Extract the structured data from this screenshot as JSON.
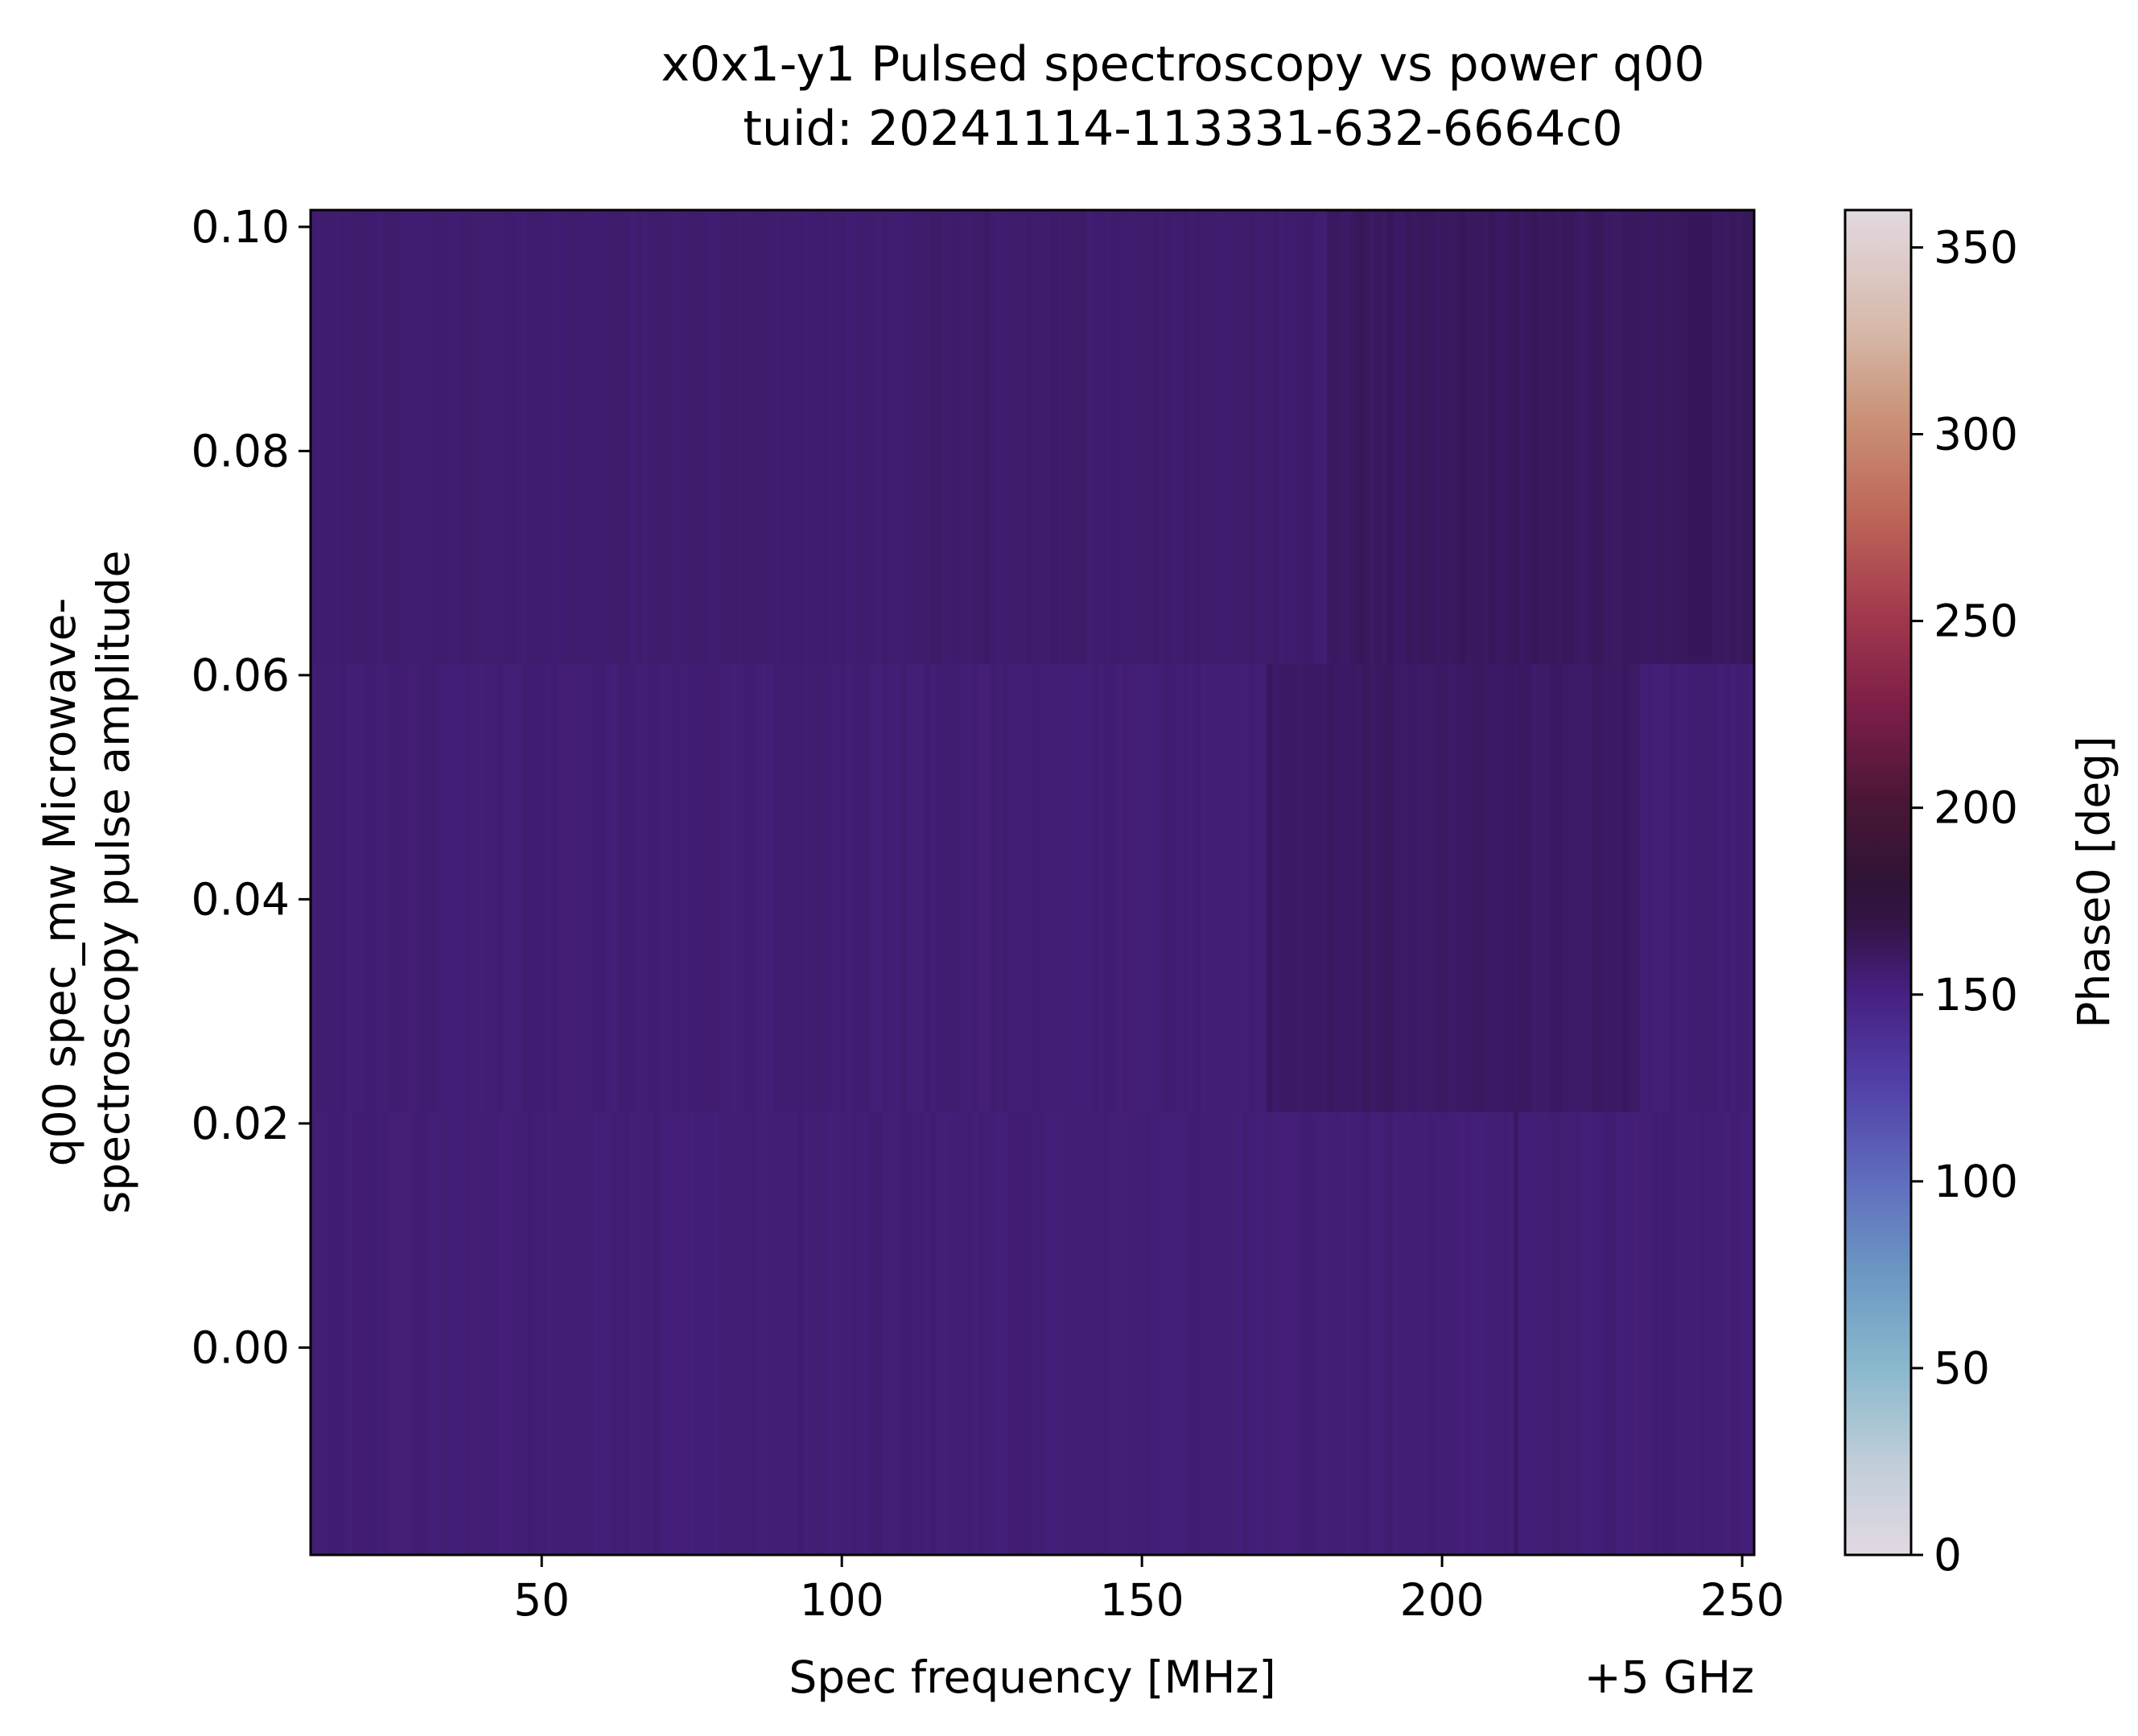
{
  "chart_data": {
    "type": "heatmap",
    "title_line1": "x0x1-y1 Pulsed spectroscopy vs power q00",
    "title_line2": "tuid: 20241114-113331-632-6664c0",
    "xlabel": "Spec frequency [MHz]",
    "x_offset_label": "+5 GHz",
    "ylabel_line1": "q00 spec_mw Microwave-",
    "ylabel_line2": "spectroscopy pulse amplitude",
    "xlim": [
      11.5,
      252
    ],
    "ylim": [
      -0.0185,
      0.1015
    ],
    "x_ticks": [
      50,
      100,
      150,
      200,
      250
    ],
    "x_tick_labels": [
      "50",
      "100",
      "150",
      "200",
      "250"
    ],
    "y_ticks": [
      0.0,
      0.02,
      0.04,
      0.06,
      0.08,
      0.1
    ],
    "y_tick_labels": [
      "0.00",
      "0.02",
      "0.04",
      "0.06",
      "0.08",
      "0.10"
    ],
    "colorbar": {
      "label": "Phase0 [deg]",
      "range": [
        0,
        360
      ],
      "ticks": [
        0,
        50,
        100,
        150,
        200,
        250,
        300,
        350
      ],
      "tick_labels": [
        "0",
        "50",
        "100",
        "150",
        "200",
        "250",
        "300",
        "350"
      ],
      "colormap": "twilight"
    },
    "rows": [
      {
        "amplitude_range": [
          -0.0185,
          0.021
        ],
        "phase_deg": 142,
        "feature": "thin darker line at ~212 MHz (phase ~155)"
      },
      {
        "amplitude_range": [
          0.021,
          0.061
        ],
        "phase_deg": 143,
        "notes": "darker region 170–230 MHz (phase ~150–160)"
      },
      {
        "amplitude_range": [
          0.061,
          0.1015
        ],
        "phase_deg": 146,
        "notes": "darker region 180–252 MHz (phase ~155–165)"
      }
    ]
  }
}
